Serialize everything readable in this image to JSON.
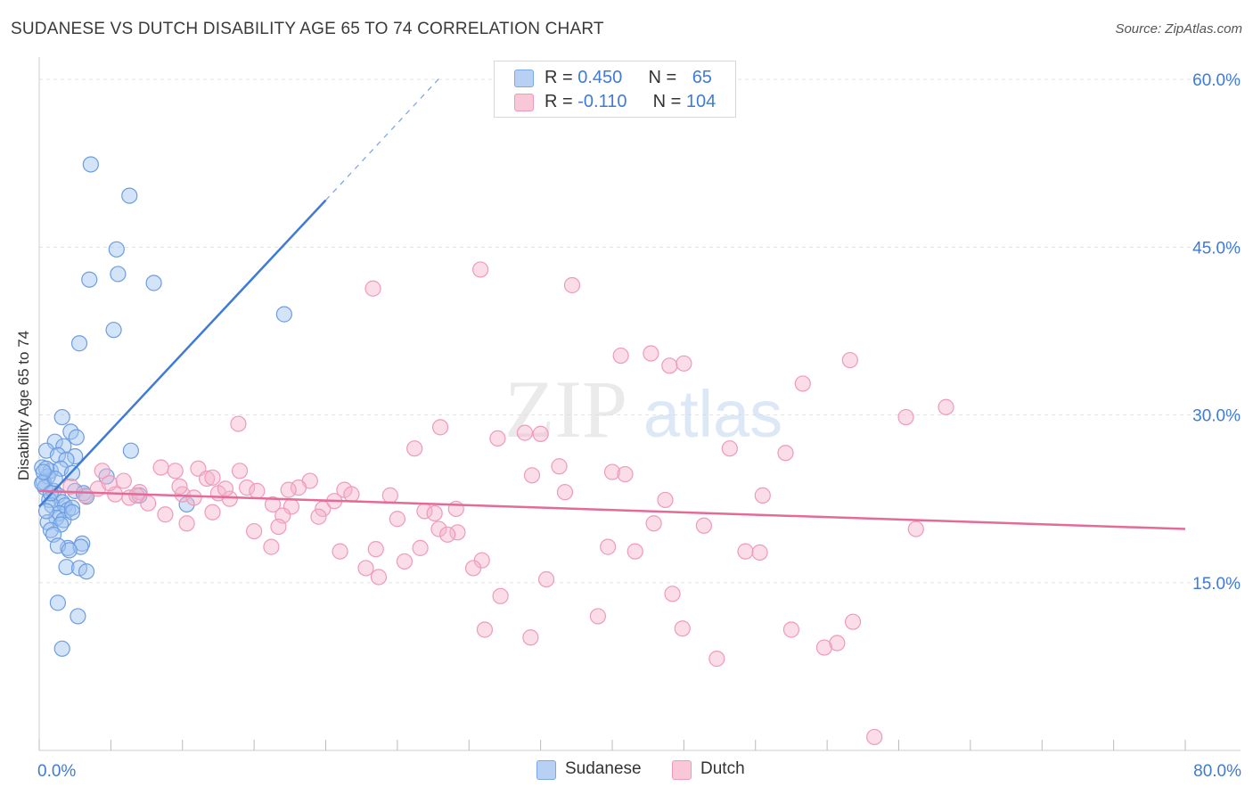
{
  "title": "SUDANESE VS DUTCH DISABILITY AGE 65 TO 74 CORRELATION CHART",
  "source": "Source: ZipAtlas.com",
  "watermark": {
    "zip": "ZIP",
    "atlas": "atlas"
  },
  "legend_top": [
    {
      "r_label": "R = ",
      "r_value": "0.450",
      "n_label": "N = ",
      "n_value": "65",
      "color": "#7aa7e8",
      "fill": "#b8d0f4"
    },
    {
      "r_label": "R = ",
      "r_value": "-0.110",
      "n_label": "N = ",
      "n_value": "104",
      "color": "#ef9ab8",
      "fill": "#f9c7d8"
    }
  ],
  "chart_data": {
    "type": "scatter",
    "title": "SUDANESE VS DUTCH DISABILITY AGE 65 TO 74 CORRELATION CHART",
    "xlabel": "",
    "ylabel": "Disability Age 65 to 74",
    "xlim": [
      0,
      80
    ],
    "ylim": [
      0,
      62
    ],
    "x_tick_labels": [
      {
        "value": 0,
        "label": "0.0%"
      },
      {
        "value": 80,
        "label": "80.0%"
      }
    ],
    "y_tick_labels": [
      {
        "value": 15,
        "label": "15.0%"
      },
      {
        "value": 30,
        "label": "30.0%"
      },
      {
        "value": 45,
        "label": "45.0%"
      },
      {
        "value": 60,
        "label": "60.0%"
      }
    ],
    "grid": true,
    "legend_position": "bottom-center",
    "series": [
      {
        "name": "Sudanese",
        "color": "#3f7bd6",
        "point_fill": "rgba(160,195,240,0.45)",
        "point_stroke": "#6c9de2",
        "trend": {
          "x0": 0,
          "y0": 21.8,
          "x1": 20,
          "y1": 49.2,
          "dash_x1": 28,
          "dash_y1": 60.2
        },
        "points": [
          [
            3.6,
            52.4
          ],
          [
            6.3,
            49.6
          ],
          [
            5.4,
            44.8
          ],
          [
            5.5,
            42.6
          ],
          [
            3.5,
            42.1
          ],
          [
            8.0,
            41.8
          ],
          [
            17.1,
            39.0
          ],
          [
            5.2,
            37.6
          ],
          [
            2.8,
            36.4
          ],
          [
            1.6,
            29.8
          ],
          [
            2.2,
            28.5
          ],
          [
            2.6,
            28.0
          ],
          [
            1.1,
            27.6
          ],
          [
            1.7,
            27.2
          ],
          [
            0.5,
            26.8
          ],
          [
            1.3,
            26.4
          ],
          [
            2.5,
            26.3
          ],
          [
            6.4,
            26.8
          ],
          [
            1.9,
            26.0
          ],
          [
            0.2,
            25.3
          ],
          [
            0.8,
            25.0
          ],
          [
            1.5,
            25.2
          ],
          [
            0.6,
            24.5
          ],
          [
            2.3,
            24.8
          ],
          [
            4.7,
            24.5
          ],
          [
            0.3,
            24.0
          ],
          [
            0.4,
            23.5
          ],
          [
            1.0,
            23.2
          ],
          [
            1.3,
            22.8
          ],
          [
            0.7,
            22.4
          ],
          [
            2.5,
            23.2
          ],
          [
            3.1,
            23.0
          ],
          [
            3.3,
            22.7
          ],
          [
            7.0,
            22.8
          ],
          [
            1.6,
            22.2
          ],
          [
            0.9,
            21.9
          ],
          [
            1.8,
            21.9
          ],
          [
            2.0,
            21.5
          ],
          [
            2.3,
            21.7
          ],
          [
            1.4,
            21.2
          ],
          [
            1.2,
            20.8
          ],
          [
            1.7,
            20.6
          ],
          [
            0.6,
            20.4
          ],
          [
            1.5,
            20.2
          ],
          [
            10.3,
            22.0
          ],
          [
            2.3,
            21.3
          ],
          [
            0.8,
            19.7
          ],
          [
            1.0,
            19.3
          ],
          [
            3.0,
            18.5
          ],
          [
            2.0,
            18.1
          ],
          [
            1.3,
            18.3
          ],
          [
            2.9,
            18.2
          ],
          [
            2.1,
            17.9
          ],
          [
            1.9,
            16.4
          ],
          [
            2.8,
            16.3
          ],
          [
            3.3,
            16.0
          ],
          [
            1.3,
            13.2
          ],
          [
            2.7,
            12.0
          ],
          [
            1.6,
            9.1
          ],
          [
            0.5,
            21.4
          ],
          [
            0.2,
            23.9
          ],
          [
            0.5,
            25.2
          ],
          [
            1.1,
            24.3
          ],
          [
            0.3,
            24.9
          ],
          [
            0.8,
            23.0
          ]
        ]
      },
      {
        "name": "Dutch",
        "color": "#e46b98",
        "point_fill": "rgba(245,180,205,0.45)",
        "point_stroke": "#ef9ab8",
        "trend": {
          "x0": 0,
          "y0": 23.2,
          "x1": 80,
          "y1": 19.8
        },
        "points": [
          [
            30.8,
            43.0
          ],
          [
            23.3,
            41.3
          ],
          [
            37.2,
            41.6
          ],
          [
            40.6,
            35.3
          ],
          [
            42.7,
            35.5
          ],
          [
            44.0,
            34.4
          ],
          [
            45.0,
            34.6
          ],
          [
            56.6,
            34.9
          ],
          [
            53.3,
            32.8
          ],
          [
            63.3,
            30.7
          ],
          [
            60.5,
            29.8
          ],
          [
            13.9,
            29.2
          ],
          [
            28.0,
            28.9
          ],
          [
            32.0,
            27.9
          ],
          [
            33.9,
            28.4
          ],
          [
            35.0,
            28.3
          ],
          [
            26.2,
            27.0
          ],
          [
            48.2,
            27.0
          ],
          [
            52.1,
            26.6
          ],
          [
            36.3,
            25.4
          ],
          [
            11.1,
            25.2
          ],
          [
            14.0,
            25.0
          ],
          [
            8.5,
            25.3
          ],
          [
            9.5,
            25.0
          ],
          [
            40.0,
            24.9
          ],
          [
            40.9,
            24.7
          ],
          [
            34.4,
            24.6
          ],
          [
            4.4,
            25.0
          ],
          [
            11.7,
            24.3
          ],
          [
            12.1,
            24.4
          ],
          [
            5.9,
            24.1
          ],
          [
            18.9,
            24.1
          ],
          [
            18.1,
            23.5
          ],
          [
            14.5,
            23.5
          ],
          [
            21.3,
            23.3
          ],
          [
            15.2,
            23.2
          ],
          [
            2.2,
            23.6
          ],
          [
            3.2,
            22.8
          ],
          [
            4.1,
            23.4
          ],
          [
            5.3,
            22.9
          ],
          [
            6.3,
            22.6
          ],
          [
            7.0,
            23.1
          ],
          [
            10.0,
            22.9
          ],
          [
            10.8,
            22.6
          ],
          [
            12.5,
            23.0
          ],
          [
            13.3,
            22.5
          ],
          [
            21.8,
            22.9
          ],
          [
            24.5,
            22.8
          ],
          [
            36.7,
            23.1
          ],
          [
            43.7,
            22.4
          ],
          [
            50.5,
            22.8
          ],
          [
            7.6,
            22.1
          ],
          [
            16.3,
            22.0
          ],
          [
            17.6,
            21.8
          ],
          [
            19.8,
            21.6
          ],
          [
            26.9,
            21.4
          ],
          [
            27.6,
            21.2
          ],
          [
            29.1,
            21.6
          ],
          [
            8.8,
            21.1
          ],
          [
            17.0,
            21.0
          ],
          [
            19.5,
            20.9
          ],
          [
            25.0,
            20.7
          ],
          [
            42.9,
            20.3
          ],
          [
            46.4,
            20.1
          ],
          [
            10.3,
            20.3
          ],
          [
            16.7,
            20.0
          ],
          [
            12.1,
            21.3
          ],
          [
            15.0,
            19.6
          ],
          [
            27.9,
            19.8
          ],
          [
            29.2,
            19.5
          ],
          [
            28.5,
            19.3
          ],
          [
            61.2,
            19.8
          ],
          [
            16.2,
            18.2
          ],
          [
            23.5,
            18.0
          ],
          [
            26.6,
            18.1
          ],
          [
            39.7,
            18.2
          ],
          [
            41.6,
            17.8
          ],
          [
            49.3,
            17.8
          ],
          [
            21.0,
            17.8
          ],
          [
            50.3,
            17.7
          ],
          [
            30.9,
            17.0
          ],
          [
            22.8,
            16.3
          ],
          [
            25.5,
            16.9
          ],
          [
            30.3,
            16.3
          ],
          [
            23.7,
            15.5
          ],
          [
            35.4,
            15.3
          ],
          [
            32.2,
            13.8
          ],
          [
            44.2,
            14.0
          ],
          [
            39.0,
            12.0
          ],
          [
            56.8,
            11.5
          ],
          [
            31.1,
            10.8
          ],
          [
            34.3,
            10.1
          ],
          [
            44.9,
            10.9
          ],
          [
            52.5,
            10.8
          ],
          [
            55.7,
            9.6
          ],
          [
            54.8,
            9.2
          ],
          [
            47.3,
            8.2
          ],
          [
            58.3,
            1.2
          ],
          [
            17.4,
            23.3
          ],
          [
            20.6,
            22.3
          ],
          [
            13.0,
            23.4
          ],
          [
            9.8,
            23.6
          ],
          [
            4.9,
            23.9
          ],
          [
            6.8,
            22.8
          ]
        ]
      }
    ]
  },
  "legend_bottom": [
    {
      "label": "Sudanese",
      "fill": "#b8d0f4",
      "stroke": "#7aa7e8"
    },
    {
      "label": "Dutch",
      "fill": "#f9c7d8",
      "stroke": "#ef9ab8"
    }
  ]
}
